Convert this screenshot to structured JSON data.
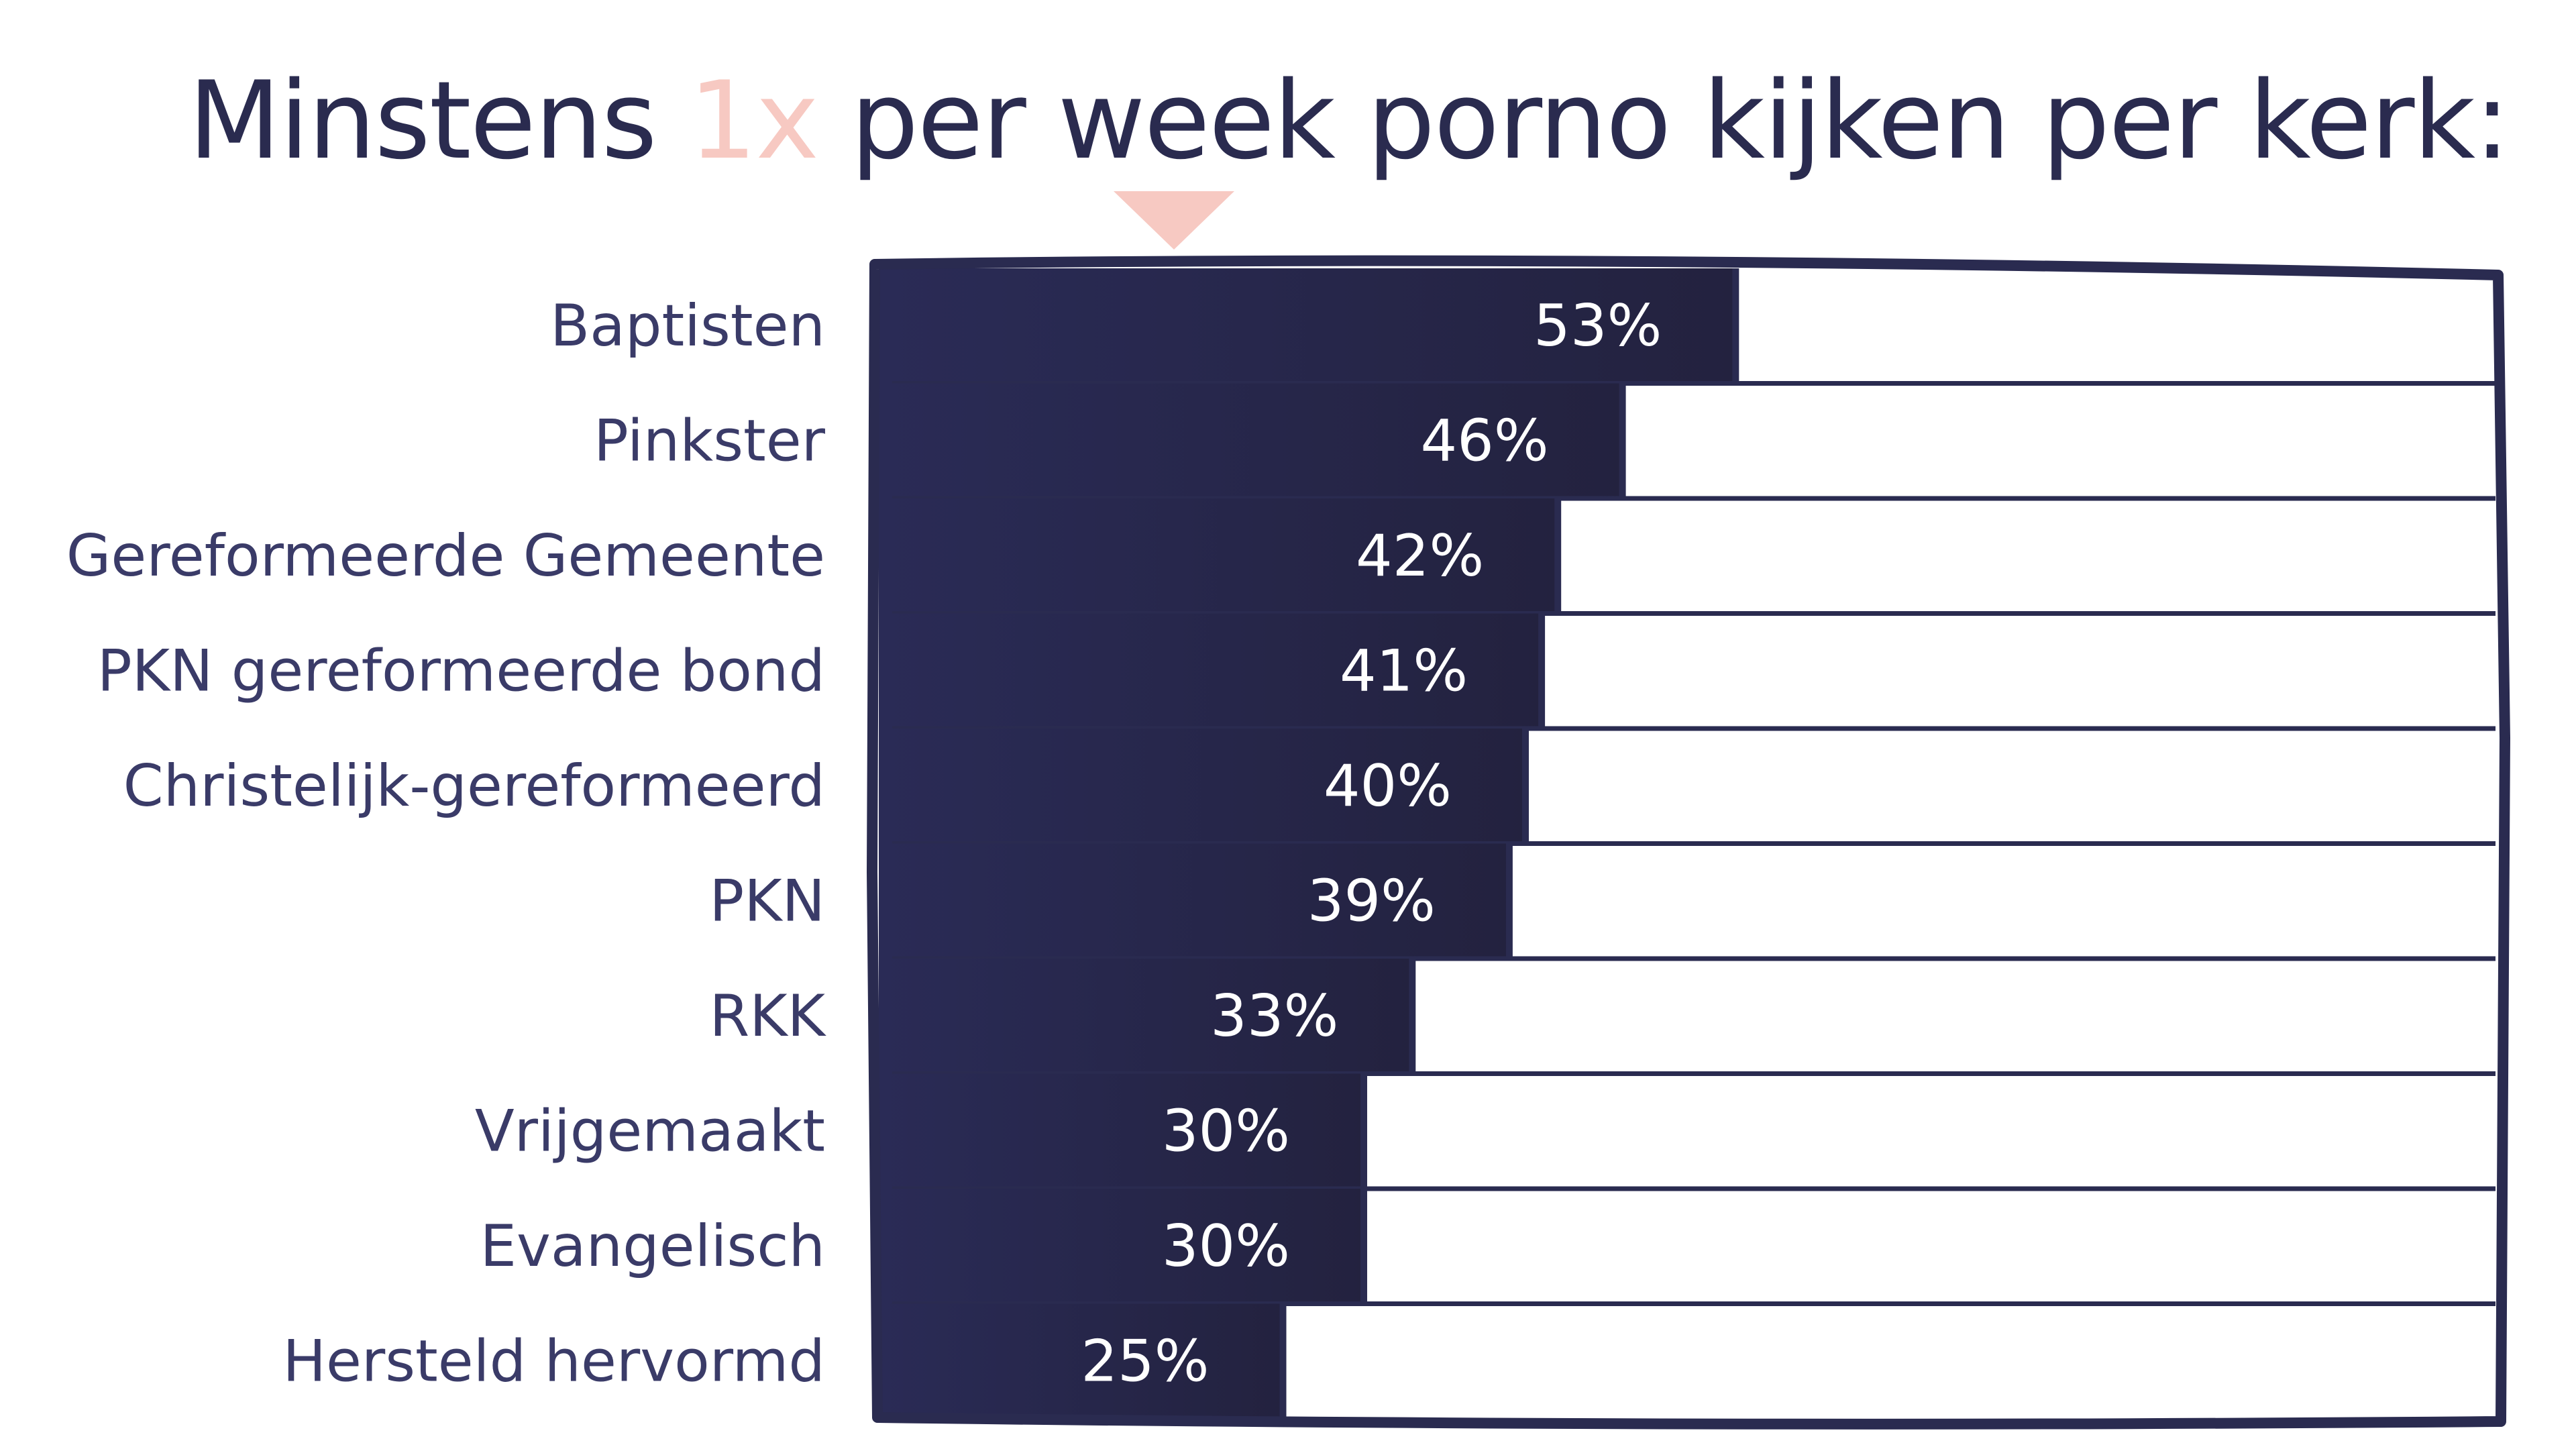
{
  "title": {
    "prefix": "Minstens ",
    "highlight": "1x",
    "suffix": " per week porno kijken per kerk:"
  },
  "colors": {
    "bar": "#2a2b56",
    "bar_dark": "#23223f",
    "frame": "#2a2b50",
    "label": "#3a3b68",
    "accent": "#f7c9c2",
    "value_text": "#ffffff"
  },
  "chart_data": {
    "type": "bar",
    "orientation": "horizontal",
    "title": "Minstens 1x per week porno kijken per kerk:",
    "categories": [
      "Baptisten",
      "Pinkster",
      "Gereformeerde Gemeente",
      "PKN gereformeerde bond",
      "Christelijk-gereformeerd",
      "PKN",
      "RKK",
      "Vrijgemaakt",
      "Evangelisch",
      "Hersteld hervormd"
    ],
    "values": [
      53,
      46,
      42,
      41,
      40,
      39,
      33,
      30,
      30,
      25
    ],
    "value_labels": [
      "53%",
      "46%",
      "42%",
      "41%",
      "40%",
      "39%",
      "33%",
      "30%",
      "30%",
      "25%"
    ],
    "unit": "%",
    "xlim": [
      0,
      100
    ],
    "grid": false,
    "legend": "none"
  }
}
